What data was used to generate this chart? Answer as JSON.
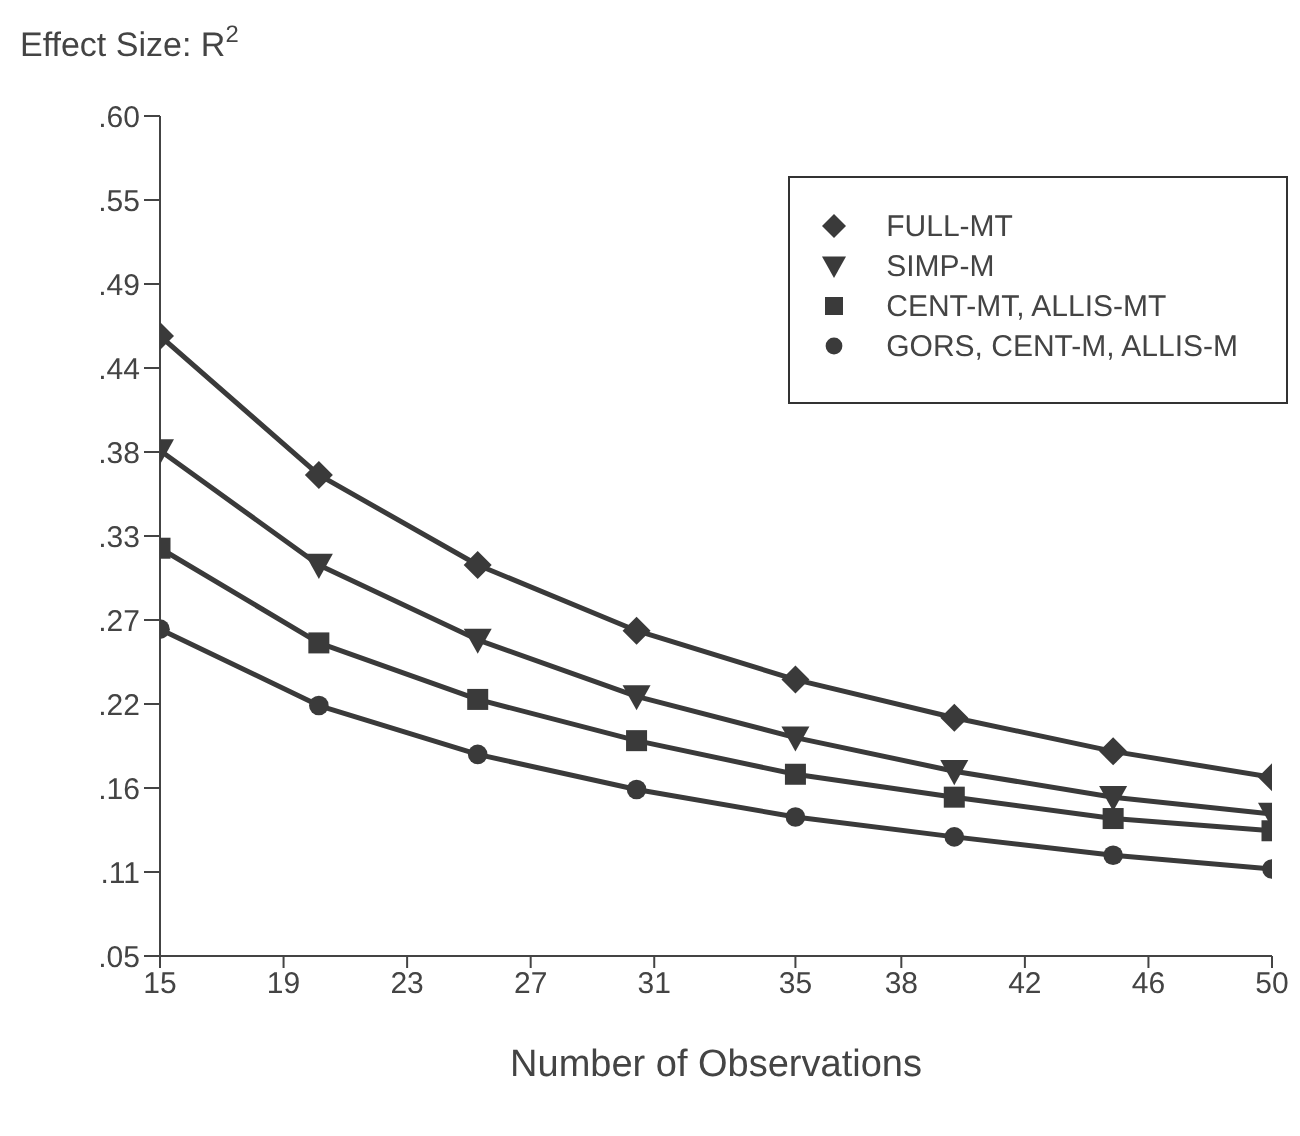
{
  "chart_data": {
    "type": "line",
    "ylabel": "Effect Size: R$^{2}$",
    "xlabel": "Number of Observations",
    "x": [
      15,
      20,
      25,
      30,
      35,
      40,
      45,
      50
    ],
    "series": [
      {
        "name": "FULL-MT",
        "color": "#3a3a3a",
        "marker": "diamond",
        "values": [
          0.456,
          0.365,
          0.306,
          0.263,
          0.231,
          0.206,
          0.184,
          0.167
        ]
      },
      {
        "name": "SIMP-M",
        "color": "#3a3a3a",
        "marker": "triangle",
        "values": [
          0.381,
          0.306,
          0.257,
          0.22,
          0.193,
          0.171,
          0.154,
          0.143
        ]
      },
      {
        "name": "CENT-MT, ALLIS-MT",
        "color": "#3a3a3a",
        "marker": "square",
        "values": [
          0.317,
          0.255,
          0.218,
          0.191,
          0.169,
          0.154,
          0.14,
          0.132
        ]
      },
      {
        "name": "GORS, CENT-M, ALLIS-M",
        "color": "#3a3a3a",
        "marker": "circle",
        "values": [
          0.264,
          0.214,
          0.182,
          0.159,
          0.141,
          0.128,
          0.116,
          0.107
        ]
      }
    ],
    "xlim": [
      15,
      50
    ],
    "xticks": [
      15,
      {
        "value": 18.889,
        "label": "19"
      },
      {
        "value": 22.778,
        "label": "23"
      },
      {
        "value": 26.667,
        "label": "27"
      },
      {
        "value": 30.556,
        "label": "31"
      },
      35,
      {
        "value": 38.333,
        "label": "38"
      },
      {
        "value": 42.222,
        "label": "42"
      },
      {
        "value": 46.111,
        "label": "46"
      },
      50
    ],
    "ylim": [
      0.05,
      0.6
    ],
    "yticks": [
      {
        "value": 0.05,
        "label": ".05"
      },
      {
        "value": 0.105,
        "label": ".11"
      },
      {
        "value": 0.16,
        "label": ".16"
      },
      {
        "value": 0.215,
        "label": ".22"
      },
      {
        "value": 0.27,
        "label": ".27"
      },
      {
        "value": 0.325,
        "label": ".33"
      },
      {
        "value": 0.38,
        "label": ".38"
      },
      {
        "value": 0.435,
        "label": ".44"
      },
      {
        "value": 0.49,
        "label": ".49"
      },
      {
        "value": 0.545,
        "label": ".55"
      },
      {
        "value": 0.6,
        "label": ".60"
      }
    ],
    "grid": false,
    "legend": "top right",
    "line_style": "solid"
  }
}
